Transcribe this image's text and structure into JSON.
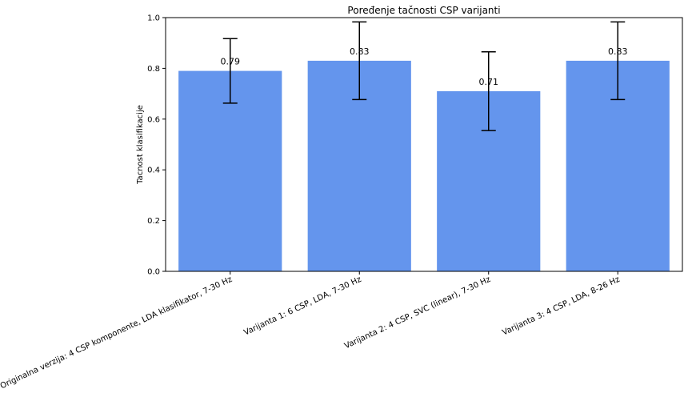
{
  "chart_data": {
    "type": "bar",
    "title": "Poređenje tačnosti CSP varijanti",
    "xlabel": "",
    "ylabel": "Tacnost klasifikacije",
    "ylim": [
      0,
      1.0
    ],
    "yticks": [
      "0.0",
      "0.2",
      "0.4",
      "0.6",
      "0.8",
      "1.0"
    ],
    "categories": [
      "Originalna verzija: 4 CSP komponente, LDA klasifikator, 7-30 Hz",
      "Varijanta 1: 6 CSP, LDA, 7-30 Hz",
      "Varijanta 2: 4 CSP, SVC (linear), 7-30 Hz",
      "Varijanta 3: 4 CSP, LDA, 8-26 Hz"
    ],
    "values": [
      0.79,
      0.83,
      0.71,
      0.83
    ],
    "value_labels": [
      "0.79",
      "0.83",
      "0.71",
      "0.83"
    ],
    "error": [
      0.127,
      0.153,
      0.155,
      0.153
    ],
    "bar_color": "#6495ED",
    "grid": false,
    "legend": "none"
  }
}
